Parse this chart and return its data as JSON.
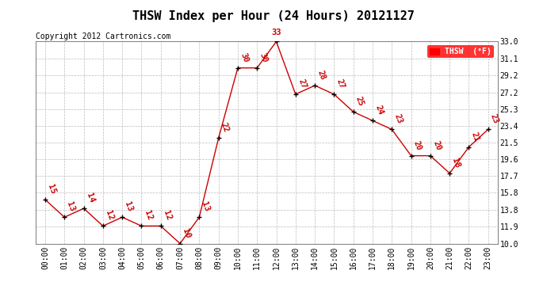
{
  "title": "THSW Index per Hour (24 Hours) 20121127",
  "copyright": "Copyright 2012 Cartronics.com",
  "legend_label": "THSW  (°F)",
  "hours": [
    0,
    1,
    2,
    3,
    4,
    5,
    6,
    7,
    8,
    9,
    10,
    11,
    12,
    13,
    14,
    15,
    16,
    17,
    18,
    19,
    20,
    21,
    22,
    23
  ],
  "values": [
    15,
    13,
    14,
    12,
    13,
    12,
    12,
    10,
    13,
    22,
    30,
    30,
    33,
    27,
    28,
    27,
    25,
    24,
    23,
    20,
    20,
    18,
    21,
    23
  ],
  "line_color": "#cc0000",
  "marker_color": "#000000",
  "label_color": "#cc0000",
  "background_color": "#ffffff",
  "grid_color": "#bbbbbb",
  "ylim": [
    10.0,
    33.0
  ],
  "yticks": [
    10.0,
    11.9,
    13.8,
    15.8,
    17.7,
    19.6,
    21.5,
    23.4,
    25.3,
    27.2,
    29.2,
    31.1,
    33.0
  ],
  "title_fontsize": 11,
  "copyright_fontsize": 7,
  "tick_fontsize": 7,
  "label_fontsize": 7.5
}
